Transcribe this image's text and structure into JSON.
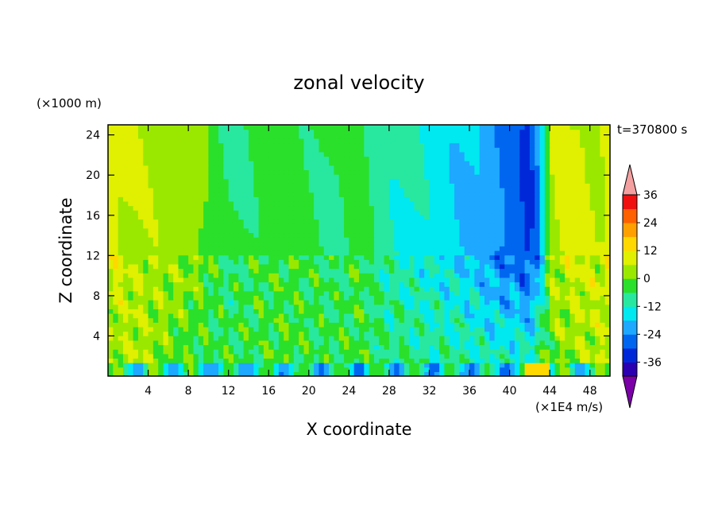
{
  "chart_data": {
    "type": "heatmap",
    "title": "zonal velocity",
    "xlabel": "X coordinate",
    "ylabel": "Z coordinate",
    "x_scale_label": "(×1E4 m/s)",
    "y_scale_label": "(×1000 m)",
    "time_label": "t=370800 s",
    "xlim": [
      0,
      50
    ],
    "ylim": [
      0,
      25
    ],
    "xticks": [
      4,
      8,
      12,
      16,
      20,
      24,
      28,
      32,
      36,
      40,
      44,
      48
    ],
    "yticks": [
      4,
      8,
      12,
      16,
      20,
      24
    ],
    "colorbar": {
      "levels": [
        -36,
        -30,
        -24,
        -18,
        -12,
        -6,
        0,
        6,
        12,
        18,
        24,
        30,
        36
      ],
      "labels": [
        36,
        24,
        12,
        0,
        -12,
        -24,
        -36
      ],
      "colors": [
        "#7b00a8",
        "#2a00b0",
        "#0028d8",
        "#0066f0",
        "#1ea8ff",
        "#00e8f0",
        "#28e8a0",
        "#2ae02a",
        "#9ae800",
        "#e0f000",
        "#ffd800",
        "#ffa000",
        "#ff6000",
        "#f01010",
        "#f4a0a0"
      ],
      "extend": "both"
    },
    "field_description": "Zonal velocity field over X (0-50) and Z (0-25): positive (yellow) near left and right boundaries, negative (cyan/blue) band around X 34-44 in the upper layer, turbulent mixed values below Z≈10, strong negatives and a positive spot near the bottom."
  },
  "field_profile": {
    "upper": [
      [
        0,
        15
      ],
      [
        1.5,
        13
      ],
      [
        3,
        11
      ],
      [
        5,
        10
      ],
      [
        7,
        9
      ],
      [
        9,
        8
      ],
      [
        10,
        4
      ],
      [
        11,
        1
      ],
      [
        12,
        -1
      ],
      [
        13,
        0
      ],
      [
        15,
        2
      ],
      [
        17,
        3
      ],
      [
        19,
        2
      ],
      [
        21,
        1
      ],
      [
        23,
        -1
      ],
      [
        25,
        3
      ],
      [
        27,
        -3
      ],
      [
        29,
        -5
      ],
      [
        31,
        -7
      ],
      [
        33,
        -9
      ],
      [
        35,
        -11
      ],
      [
        37,
        -13
      ],
      [
        38,
        -17
      ],
      [
        39.5,
        -20
      ],
      [
        41,
        -22
      ],
      [
        42,
        -25
      ],
      [
        43,
        -15
      ],
      [
        44,
        10
      ],
      [
        45,
        12
      ],
      [
        47,
        14
      ],
      [
        49,
        12
      ],
      [
        50,
        16
      ]
    ],
    "lower": [
      [
        0,
        9
      ],
      [
        3,
        12
      ],
      [
        6,
        6
      ],
      [
        9,
        2
      ],
      [
        12,
        1
      ],
      [
        15,
        2
      ],
      [
        18,
        4
      ],
      [
        21,
        0
      ],
      [
        24,
        3
      ],
      [
        27,
        0
      ],
      [
        30,
        -2
      ],
      [
        33,
        -3
      ],
      [
        36,
        -4
      ],
      [
        39,
        -6
      ],
      [
        42,
        -5
      ],
      [
        44,
        5
      ],
      [
        47,
        10
      ],
      [
        50,
        12
      ]
    ]
  }
}
